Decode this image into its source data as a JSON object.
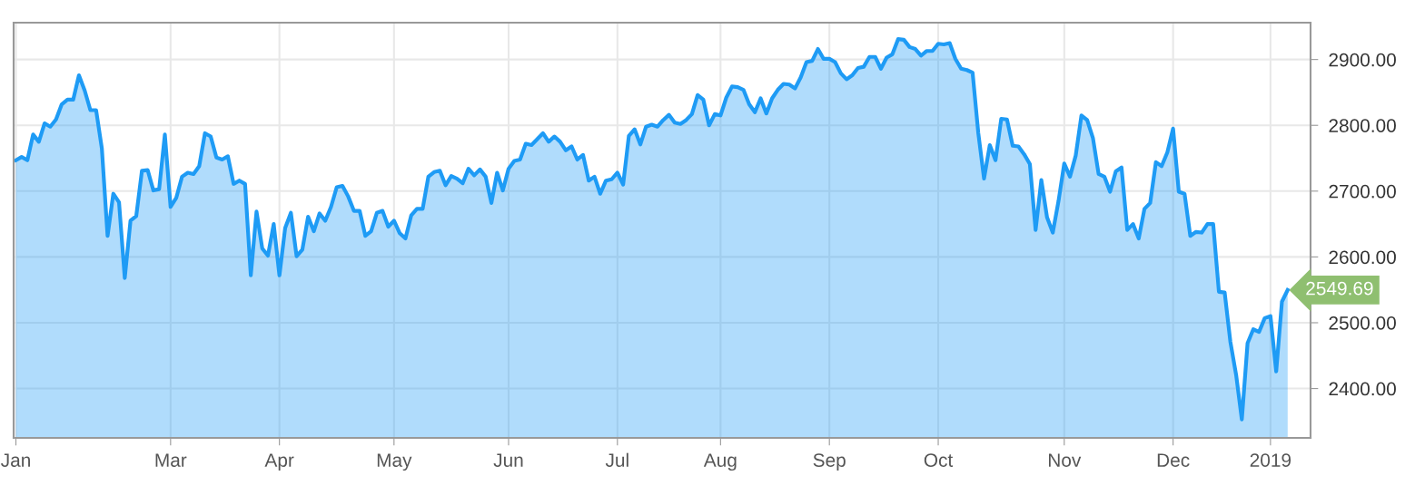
{
  "chart_data": {
    "type": "area",
    "categories": [
      "Jan",
      null,
      null,
      null,
      null,
      null,
      null,
      null,
      null,
      null,
      null,
      null,
      null,
      null,
      null,
      null,
      null,
      null,
      null,
      null,
      null,
      null,
      null,
      null,
      null,
      null,
      null,
      "Mar",
      null,
      null,
      null,
      null,
      null,
      null,
      null,
      null,
      null,
      null,
      null,
      null,
      null,
      null,
      null,
      null,
      null,
      null,
      "Apr",
      null,
      null,
      null,
      null,
      null,
      null,
      null,
      null,
      null,
      null,
      null,
      null,
      null,
      null,
      null,
      null,
      null,
      null,
      null,
      "May",
      null,
      null,
      null,
      null,
      null,
      null,
      null,
      null,
      null,
      null,
      null,
      null,
      null,
      null,
      null,
      null,
      null,
      null,
      null,
      "Jun",
      null,
      null,
      null,
      null,
      null,
      null,
      null,
      null,
      null,
      null,
      null,
      null,
      null,
      null,
      null,
      null,
      null,
      null,
      "Jul",
      null,
      null,
      null,
      null,
      null,
      null,
      null,
      null,
      null,
      null,
      null,
      null,
      null,
      null,
      null,
      null,
      null,
      "Aug",
      null,
      null,
      null,
      null,
      null,
      null,
      null,
      null,
      null,
      null,
      null,
      null,
      null,
      null,
      null,
      null,
      null,
      null,
      "Sep",
      null,
      null,
      null,
      null,
      null,
      null,
      null,
      null,
      null,
      null,
      null,
      null,
      null,
      null,
      null,
      null,
      null,
      null,
      "Oct",
      null,
      null,
      null,
      null,
      null,
      null,
      null,
      null,
      null,
      null,
      null,
      null,
      null,
      null,
      null,
      null,
      null,
      null,
      null,
      null,
      null,
      "Nov",
      null,
      null,
      null,
      null,
      null,
      null,
      null,
      null,
      null,
      null,
      null,
      null,
      null,
      null,
      null,
      null,
      null,
      null,
      "Dec",
      null,
      null,
      null,
      null,
      null,
      null,
      null,
      null,
      null,
      null,
      null,
      null,
      null,
      null,
      null,
      null,
      "2019",
      null,
      null,
      null
    ],
    "series": [
      {
        "color": "#1e9bf5",
        "values": [
          2747,
          2752,
          2747,
          2786,
          2775,
          2803,
          2798,
          2809,
          2832,
          2839,
          2839,
          2876,
          2853,
          2823,
          2823,
          2765,
          2632,
          2696,
          2683,
          2568,
          2655,
          2662,
          2731,
          2732,
          2701,
          2703,
          2786,
          2676,
          2690,
          2722,
          2728,
          2726,
          2738,
          2788,
          2783,
          2751,
          2748,
          2753,
          2711,
          2716,
          2711,
          2572,
          2669,
          2613,
          2602,
          2650,
          2572,
          2644,
          2667,
          2601,
          2611,
          2661,
          2639,
          2666,
          2655,
          2676,
          2706,
          2708,
          2692,
          2670,
          2670,
          2632,
          2639,
          2667,
          2670,
          2646,
          2655,
          2636,
          2628,
          2663,
          2673,
          2673,
          2722,
          2729,
          2731,
          2709,
          2723,
          2719,
          2712,
          2734,
          2724,
          2733,
          2722,
          2682,
          2728,
          2701,
          2734,
          2746,
          2748,
          2772,
          2770,
          2779,
          2788,
          2775,
          2783,
          2775,
          2762,
          2768,
          2748,
          2755,
          2716,
          2722,
          2696,
          2716,
          2718,
          2728,
          2710,
          2784,
          2794,
          2771,
          2798,
          2801,
          2798,
          2808,
          2816,
          2804,
          2802,
          2808,
          2817,
          2846,
          2839,
          2800,
          2817,
          2815,
          2842,
          2859,
          2858,
          2854,
          2832,
          2820,
          2841,
          2818,
          2841,
          2854,
          2863,
          2862,
          2856,
          2873,
          2896,
          2898,
          2916,
          2901,
          2901,
          2896,
          2879,
          2870,
          2876,
          2887,
          2889,
          2904,
          2904,
          2886,
          2903,
          2908,
          2931,
          2930,
          2919,
          2916,
          2906,
          2913,
          2913,
          2924,
          2923,
          2925,
          2901,
          2886,
          2884,
          2880,
          2788,
          2719,
          2770,
          2747,
          2810,
          2809,
          2769,
          2768,
          2756,
          2741,
          2641,
          2717,
          2660,
          2637,
          2685,
          2742,
          2722,
          2754,
          2815,
          2808,
          2781,
          2726,
          2722,
          2699,
          2730,
          2736,
          2641,
          2650,
          2628,
          2673,
          2682,
          2744,
          2738,
          2759,
          2795,
          2699,
          2696,
          2632,
          2638,
          2637,
          2650,
          2650,
          2547,
          2546,
          2471,
          2421,
          2353,
          2469,
          2490,
          2486,
          2507,
          2510,
          2426,
          2532,
          2549.69
        ]
      }
    ],
    "ylim": [
      2325,
      2956
    ],
    "yticks": [
      {
        "value": 2400,
        "label": "2400.00"
      },
      {
        "value": 2500,
        "label": "2500.00"
      },
      {
        "value": 2600,
        "label": "2600.00"
      },
      {
        "value": 2700,
        "label": "2700.00"
      },
      {
        "value": 2800,
        "label": "2800.00"
      },
      {
        "value": 2900,
        "label": "2900.00"
      }
    ],
    "grid": true,
    "annotations": [
      "2549.69"
    ]
  }
}
